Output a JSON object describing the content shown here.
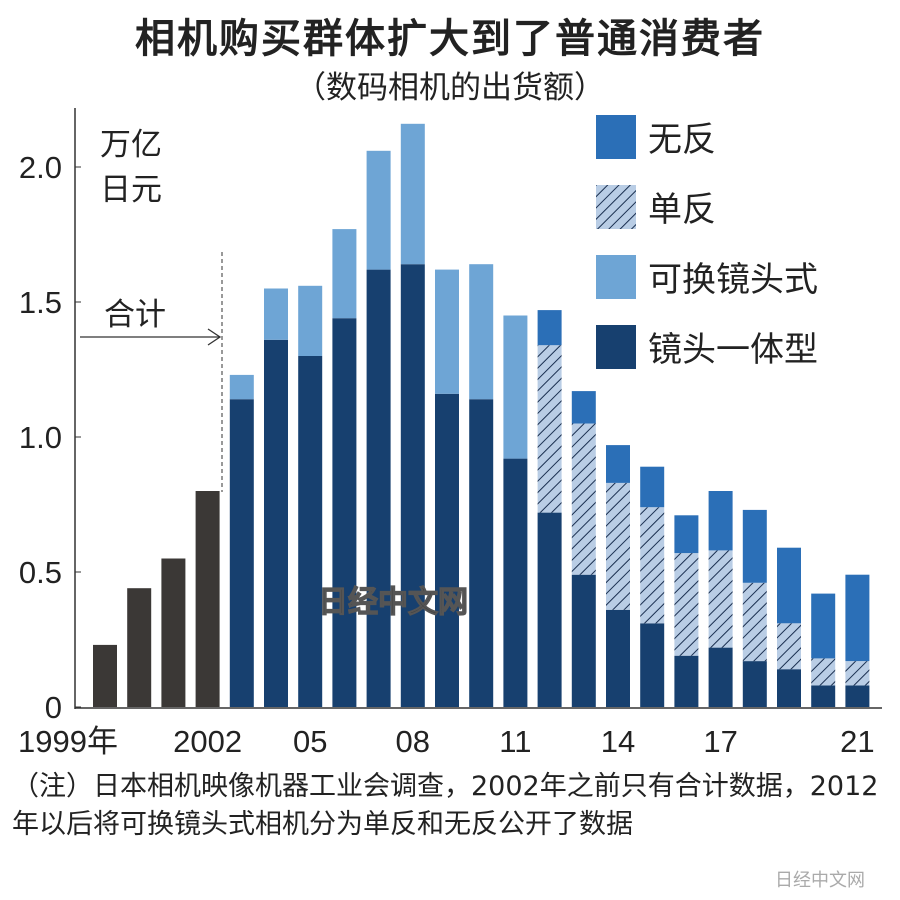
{
  "chart_data": {
    "type": "bar",
    "stacked": true,
    "title": "相机购买群体扩大到了普通消费者",
    "subtitle": "（数码相机的出货额）",
    "unit_label": [
      "万亿",
      "日元"
    ],
    "ylim": [
      0,
      2.2
    ],
    "yticks": [
      "0",
      "0.5",
      "1.0",
      "1.5",
      "2.0"
    ],
    "ytick_values": [
      0,
      0.5,
      1.0,
      1.5,
      2.0
    ],
    "grid": false,
    "legend_position": "top-right",
    "categories": [
      "1999",
      "2000",
      "2001",
      "2002",
      "2003",
      "2004",
      "2005",
      "2006",
      "2007",
      "2008",
      "2009",
      "2010",
      "2011",
      "2012",
      "2013",
      "2014",
      "2015",
      "2016",
      "2017",
      "2018",
      "2019",
      "2020",
      "2021"
    ],
    "xtick_labels": [
      {
        "category": "1999",
        "label": "1999年"
      },
      {
        "category": "2002",
        "label": "2002"
      },
      {
        "category": "2005",
        "label": "05"
      },
      {
        "category": "2008",
        "label": "08"
      },
      {
        "category": "2011",
        "label": "11"
      },
      {
        "category": "2014",
        "label": "14"
      },
      {
        "category": "2017",
        "label": "17"
      },
      {
        "category": "2021",
        "label": "21"
      }
    ],
    "series": [
      {
        "name": "合计",
        "color": "#3b3836",
        "pattern": "solid",
        "values": [
          0.23,
          0.44,
          0.55,
          0.8,
          null,
          null,
          null,
          null,
          null,
          null,
          null,
          null,
          null,
          null,
          null,
          null,
          null,
          null,
          null,
          null,
          null,
          null,
          null
        ]
      },
      {
        "name": "镜头一体型",
        "color": "#17406f",
        "pattern": "solid",
        "values": [
          null,
          null,
          null,
          null,
          1.14,
          1.36,
          1.3,
          1.44,
          1.62,
          1.64,
          1.16,
          1.14,
          0.92,
          0.72,
          0.49,
          0.36,
          0.31,
          0.19,
          0.22,
          0.17,
          0.14,
          0.08,
          0.08
        ]
      },
      {
        "name": "可换镜头式",
        "color": "#6ea5d5",
        "pattern": "solid",
        "values": [
          null,
          null,
          null,
          null,
          0.09,
          0.19,
          0.26,
          0.33,
          0.44,
          0.52,
          0.46,
          0.5,
          0.53,
          null,
          null,
          null,
          null,
          null,
          null,
          null,
          null,
          null,
          null
        ]
      },
      {
        "name": "单反",
        "color": "#b9cde5",
        "pattern": "hatched",
        "values": [
          null,
          null,
          null,
          null,
          null,
          null,
          null,
          null,
          null,
          null,
          null,
          null,
          null,
          0.62,
          0.56,
          0.47,
          0.43,
          0.38,
          0.36,
          0.29,
          0.17,
          0.1,
          0.09
        ]
      },
      {
        "name": "无反",
        "color": "#2b6fb7",
        "pattern": "solid",
        "values": [
          null,
          null,
          null,
          null,
          null,
          null,
          null,
          null,
          null,
          null,
          null,
          null,
          null,
          0.13,
          0.12,
          0.14,
          0.15,
          0.14,
          0.22,
          0.27,
          0.28,
          0.24,
          0.32
        ]
      }
    ],
    "legend_order": [
      "无反",
      "单反",
      "可换镜头式",
      "镜头一体型"
    ],
    "annotation": "合计",
    "note": "（注）日本相机映像机器工业会调查，2002年之前只有合计数据，2012年以后将可换镜头式相机分为单反和无反公开了数据"
  },
  "watermark": "日经中文网",
  "corner_watermark": "日经中文网"
}
